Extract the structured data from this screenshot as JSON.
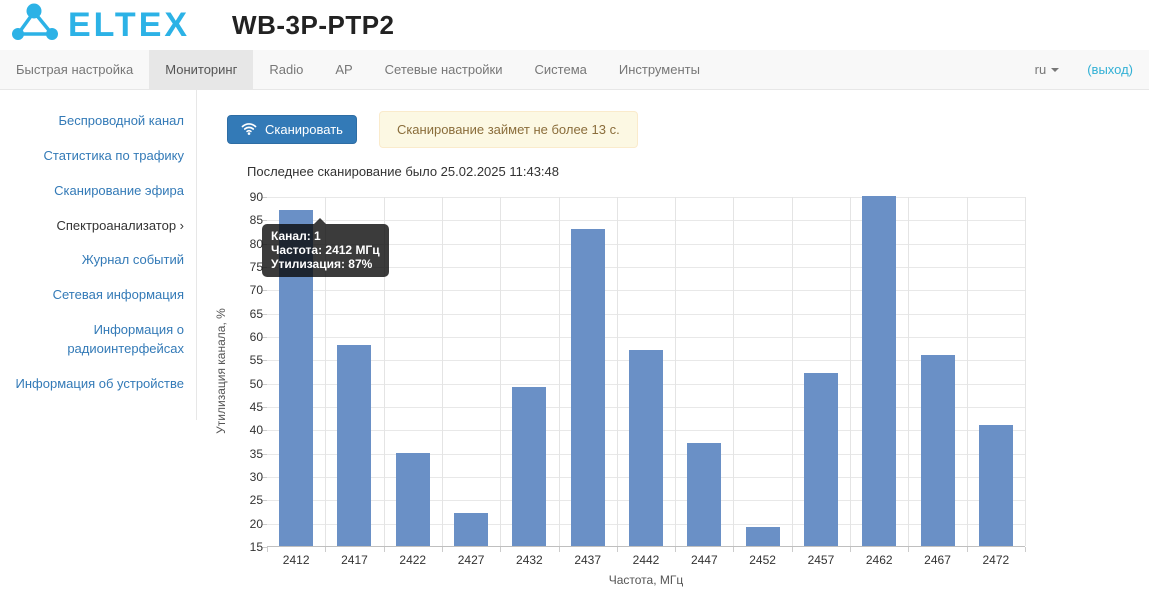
{
  "colors": {
    "brand_blue": "#2CB2E6",
    "link_blue": "#337AB7",
    "logout_blue": "#31B0D5",
    "bar_blue": "#6A90C6",
    "alert_bg": "#FCF8E3",
    "alert_border": "#FAEBCC",
    "alert_text": "#8A6D3B"
  },
  "header": {
    "brand": "ELTEX",
    "device_title": "WB-3P-PTP2"
  },
  "navbar": {
    "items": [
      {
        "id": "quick-setup",
        "label": "Быстрая настройка",
        "active": false
      },
      {
        "id": "monitoring",
        "label": "Мониторинг",
        "active": true
      },
      {
        "id": "radio",
        "label": "Radio",
        "active": false
      },
      {
        "id": "ap",
        "label": "AP",
        "active": false
      },
      {
        "id": "network-settings",
        "label": "Сетевые настройки",
        "active": false
      },
      {
        "id": "system",
        "label": "Система",
        "active": false
      },
      {
        "id": "tools",
        "label": "Инструменты",
        "active": false
      }
    ],
    "language": "ru",
    "logout": "(выход)"
  },
  "sidebar": {
    "items": [
      {
        "id": "wireless-channel",
        "label": "Беспроводной канал",
        "active": false
      },
      {
        "id": "traffic-statistics",
        "label": "Статистика по трафику",
        "active": false
      },
      {
        "id": "air-scan",
        "label": "Сканирование эфира",
        "active": false
      },
      {
        "id": "spectrum-analyzer",
        "label": "Спектроанализатор ›",
        "active": true
      },
      {
        "id": "event-log",
        "label": "Журнал событий",
        "active": false
      },
      {
        "id": "network-information",
        "label": "Сетевая информация",
        "active": false
      },
      {
        "id": "radio-interfaces-info",
        "label": "Информация о радиоинтерфейсах",
        "active": false
      },
      {
        "id": "device-info",
        "label": "Информация об устройстве",
        "active": false
      }
    ]
  },
  "toolbar": {
    "scan_button": "Сканировать",
    "scan_notice": "Сканирование займет не более 13 с."
  },
  "status": {
    "last_scan": "Последнее сканирование было 25.02.2025 11:43:48"
  },
  "tooltip": {
    "lines": [
      "Канал: 1",
      "Частота: 2412 МГц",
      "Утилизация: 87%"
    ]
  },
  "chart_data": {
    "type": "bar",
    "title": "",
    "categories": [
      "2412",
      "2417",
      "2422",
      "2427",
      "2432",
      "2437",
      "2442",
      "2447",
      "2452",
      "2457",
      "2462",
      "2467",
      "2472"
    ],
    "values": [
      87,
      58,
      35,
      22,
      49,
      83,
      57,
      37,
      19,
      52,
      90,
      56,
      41
    ],
    "xlabel": "Частота, МГц",
    "ylabel": "Утилизация канала, %",
    "ylim": [
      15,
      90
    ],
    "ytick_step": 5,
    "grid": true,
    "legend": "none",
    "bar_color": "#6A90C6",
    "tooltip_point": {
      "channel": 1,
      "frequency_mhz": 2412,
      "utilization_pct": 87
    }
  }
}
